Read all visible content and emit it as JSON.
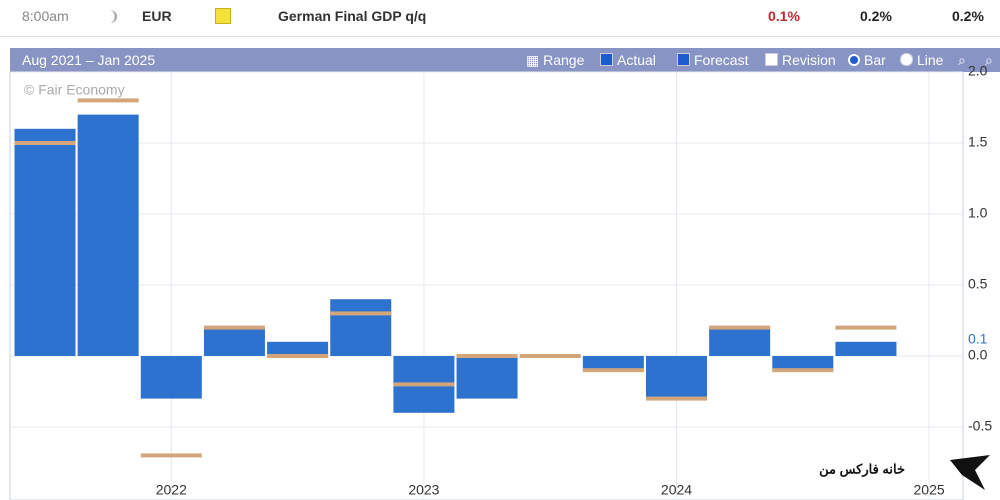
{
  "header": {
    "time": "8:00am",
    "currency": "EUR",
    "event": "German Final GDP q/q",
    "actual": "0.1%",
    "forecast": "0.2%",
    "previous": "0.2%"
  },
  "toolbar": {
    "range_text": "Aug 2021 – Jan 2025",
    "range": "Range",
    "actual": "Actual",
    "forecast": "Forecast",
    "revision": "Revision",
    "bar": "Bar",
    "line": "Line"
  },
  "watermark": "© Fair Economy",
  "logo": "خانه فارکس من",
  "chart_data": {
    "type": "bar",
    "categories": [
      null,
      null,
      null,
      null,
      null,
      null,
      null,
      null,
      null,
      null,
      null,
      null,
      null,
      null
    ],
    "series": [
      {
        "name": "Actual",
        "color": "#2e72cf",
        "values": [
          1.6,
          1.7,
          -0.3,
          0.2,
          0.1,
          0.4,
          -0.4,
          -0.3,
          0,
          -0.1,
          -0.3,
          0.2,
          -0.1,
          0.1
        ]
      },
      {
        "name": "Forecast",
        "color": "#d2a67a",
        "values": [
          1.5,
          1.8,
          -0.7,
          0.2,
          0,
          0.3,
          -0.2,
          0,
          0,
          -0.1,
          -0.3,
          0.2,
          -0.1,
          0.2
        ]
      }
    ],
    "xticks": [
      {
        "value": 2,
        "label": "2022"
      },
      {
        "value": 6,
        "label": "2023"
      },
      {
        "value": 10,
        "label": "2024"
      },
      {
        "value": 14,
        "label": "2025"
      }
    ],
    "ylim": [
      -1,
      2
    ],
    "yticks": [
      {
        "value": 2,
        "label": "2.0"
      },
      1.5,
      {
        "value": 1,
        "label": "1.0"
      },
      0.5,
      {
        "value": 0,
        "label": "0.0"
      },
      -0.5
    ],
    "highlight_tick": 0.1,
    "grid": true
  }
}
